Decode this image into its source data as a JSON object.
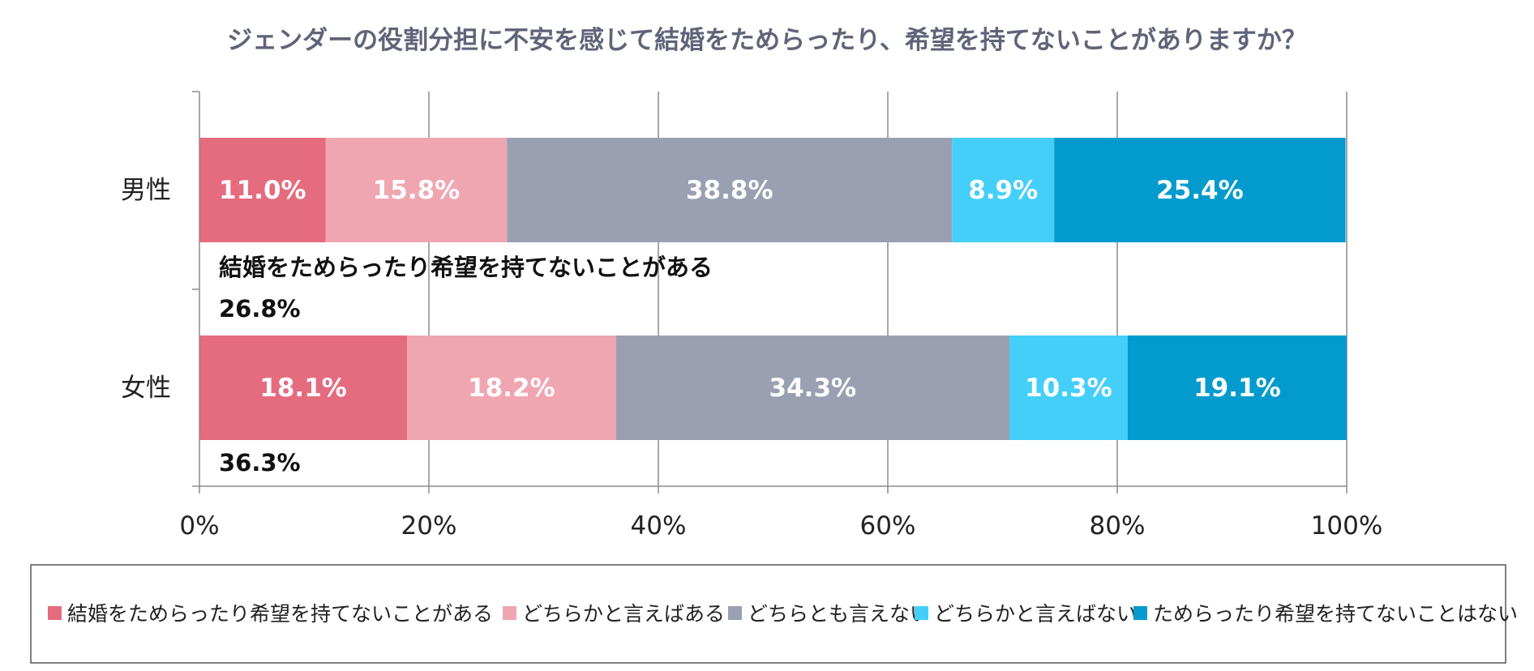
{
  "chart_data": {
    "type": "bar",
    "orientation": "horizontal",
    "stacked": true,
    "title": "ジェンダーの役割分担に不安を感じて結婚をためらったり、希望を持てないことがありますか？",
    "categories": [
      "男性",
      "女性"
    ],
    "series": [
      {
        "name": "結婚をためらったり希望を持てないことがある",
        "color": "#e56b7f",
        "values": [
          11.0,
          18.1
        ],
        "labels": [
          "11.0%",
          "18.1%"
        ]
      },
      {
        "name": "どちらかと言えばある",
        "color": "#f0a6b1",
        "values": [
          15.8,
          18.2
        ],
        "labels": [
          "15.8%",
          "18.2%"
        ]
      },
      {
        "name": "どちらとも言えない",
        "color": "#9aa0b1",
        "values": [
          38.8,
          34.3
        ],
        "labels": [
          "38.8%",
          "34.3%"
        ]
      },
      {
        "name": "どちらかと言えばない",
        "color": "#44cffa",
        "values": [
          8.9,
          10.3
        ],
        "labels": [
          "8.9%",
          "10.3%"
        ]
      },
      {
        "name": "ためらったり希望を持てないことはない",
        "color": "#039bcd",
        "values": [
          25.4,
          19.1
        ],
        "labels": [
          "25.4%",
          "19.1%"
        ]
      }
    ],
    "xlim": [
      0,
      100
    ],
    "xticks": [
      "0%",
      "20%",
      "40%",
      "60%",
      "80%",
      "100%"
    ],
    "grid": true,
    "legend_position": "bottom",
    "annotations": [
      {
        "text": "結婚をためらったり希望を持てないことがある"
      },
      {
        "text": "26.8%"
      },
      {
        "text": "36.3%"
      }
    ]
  }
}
